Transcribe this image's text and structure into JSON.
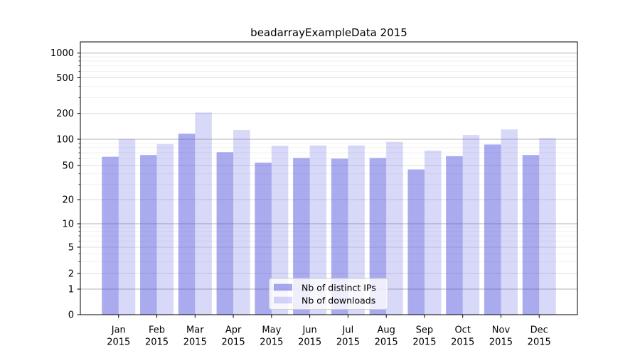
{
  "chart_data": {
    "type": "bar",
    "title": "beadarrayExampleData 2015",
    "categories": [
      "Jan",
      "Feb",
      "Mar",
      "Apr",
      "May",
      "Jun",
      "Jul",
      "Aug",
      "Sep",
      "Oct",
      "Nov",
      "Dec"
    ],
    "year_label": "2015",
    "series": [
      {
        "name": "Nb of distinct IPs",
        "values": [
          63,
          66,
          116,
          71,
          54,
          61,
          60,
          61,
          45,
          64,
          87,
          66
        ],
        "apparent_color": "#aaaaef",
        "fill": "rgba(70,70,220,0.46)"
      },
      {
        "name": "Nb of downloads",
        "values": [
          100,
          88,
          205,
          128,
          84,
          85,
          85,
          93,
          74,
          112,
          130,
          103
        ],
        "apparent_color": "#d9d9f7",
        "fill": "rgba(70,70,220,0.21)"
      }
    ],
    "y_axis": {
      "scale": "log-like",
      "tick_labels": [
        0,
        1,
        2,
        5,
        10,
        20,
        50,
        100,
        200,
        500,
        1000
      ]
    },
    "legend": {
      "position": "bottom-center"
    },
    "grid": {
      "shown": true,
      "decade_line_color": "#b3b3b3",
      "labeled_line_color": "#dcdcdc",
      "minor_line_color": "#eeeeee"
    }
  }
}
